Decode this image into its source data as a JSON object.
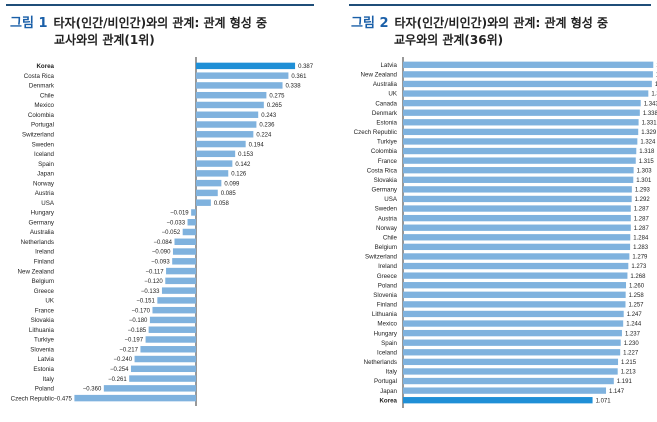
{
  "figures": [
    {
      "number": "그림 1",
      "title_line1": "타자(인간/비인간)와의 관계: 관계 형성 중",
      "title_line2": "교사와의 관계(1위)"
    },
    {
      "number": "그림 2",
      "title_line1": "타자(인간/비인간)와의 관계: 관계 형성 중",
      "title_line2": "교우와의 관계(36위)"
    }
  ],
  "colors": {
    "bar": "#7fb2de",
    "highlight": "#1f8fd6",
    "text": "#222222",
    "axis": "#333333",
    "title_num": "#1a5fa8",
    "rule": "#1f4e79"
  },
  "chart_data": [
    {
      "type": "bar",
      "orientation": "horizontal",
      "highlight": "Korea",
      "xlim": [
        -0.5,
        0.42
      ],
      "categories": [
        "Korea",
        "Costa Rica",
        "Denmark",
        "Chile",
        "Mexico",
        "Colombia",
        "Portugal",
        "Switzerland",
        "Sweden",
        "Iceland",
        "Spain",
        "Japan",
        "Norway",
        "Austria",
        "USA",
        "Hungary",
        "Germany",
        "Australia",
        "Netherlands",
        "Ireland",
        "Finland",
        "New Zealand",
        "Belgium",
        "Greece",
        "UK",
        "France",
        "Slovakia",
        "Lithuania",
        "Turkiye",
        "Slovenia",
        "Latvia",
        "Estonia",
        "Italy",
        "Poland",
        "Czech Republic"
      ],
      "values": [
        0.387,
        0.361,
        0.338,
        0.275,
        0.265,
        0.243,
        0.236,
        0.224,
        0.194,
        0.153,
        0.142,
        0.126,
        0.099,
        0.085,
        0.058,
        -0.019,
        -0.033,
        -0.052,
        -0.084,
        -0.09,
        -0.093,
        -0.117,
        -0.12,
        -0.133,
        -0.151,
        -0.17,
        -0.18,
        -0.185,
        -0.197,
        -0.217,
        -0.24,
        -0.254,
        -0.261,
        -0.36,
        -0.475
      ],
      "labels": [
        "0.387",
        "0.361",
        "0.338",
        "0.275",
        "0.265",
        "0.243",
        "0.236",
        "0.224",
        "0.194",
        "0.153",
        "0.142",
        "0.126",
        "0.099",
        "0.085",
        "0.058",
        "−0.019",
        "−0.033",
        "−0.052",
        "−0.084",
        "−0.090",
        "−0.093",
        "−0.117",
        "−0.120",
        "−0.133",
        "−0.151",
        "−0.170",
        "−0.180",
        "−0.185",
        "−0.197",
        "−0.217",
        "−0.240",
        "−0.254",
        "−0.261",
        "−0.360",
        "−0.475"
      ]
    },
    {
      "type": "bar",
      "orientation": "horizontal",
      "highlight": "Korea",
      "xlim": [
        0,
        1.46
      ],
      "categories": [
        "Latvia",
        "New Zealand",
        "Australia",
        "UK",
        "Canada",
        "Denmark",
        "Estonia",
        "Czech Republic",
        "Turkiye",
        "Colombia",
        "France",
        "Costa Rica",
        "Slovakia",
        "Germany",
        "USA",
        "Sweden",
        "Austria",
        "Norway",
        "Chile",
        "Belgium",
        "Switzerland",
        "Ireland",
        "Greece",
        "Poland",
        "Slovenia",
        "Finland",
        "Lithuania",
        "Mexico",
        "Hungary",
        "Spain",
        "Iceland",
        "Netherlands",
        "Italy",
        "Portugal",
        "Japan",
        "Korea"
      ],
      "values": [
        1.414,
        1.412,
        1.406,
        1.386,
        1.343,
        1.338,
        1.331,
        1.329,
        1.324,
        1.318,
        1.315,
        1.303,
        1.301,
        1.293,
        1.292,
        1.287,
        1.287,
        1.287,
        1.284,
        1.283,
        1.279,
        1.273,
        1.268,
        1.26,
        1.258,
        1.257,
        1.247,
        1.244,
        1.237,
        1.23,
        1.227,
        1.215,
        1.213,
        1.191,
        1.147,
        1.071
      ],
      "labels": [
        "1.414",
        "1.412",
        "1.406",
        "1.386",
        "1.343",
        "1.338",
        "1.331",
        "1.329",
        "1.324",
        "1.318",
        "1.315",
        "1.303",
        "1.301",
        "1.293",
        "1.292",
        "1.287",
        "1.287",
        "1.287",
        "1.284",
        "1.283",
        "1.279",
        "1.273",
        "1.268",
        "1.260",
        "1.258",
        "1.257",
        "1.247",
        "1.244",
        "1.237",
        "1.230",
        "1.227",
        "1.215",
        "1.213",
        "1.191",
        "1.147",
        "1.071"
      ]
    }
  ]
}
